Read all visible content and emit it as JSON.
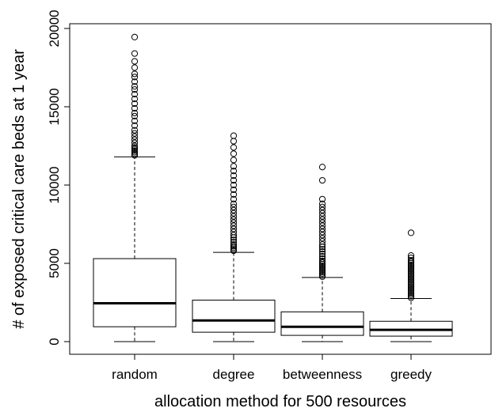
{
  "chart_data": {
    "type": "boxplot",
    "title": "",
    "xlabel": "allocation method for 500 resources",
    "ylabel": "# of exposed critical care beds at 1 year",
    "ylim": [
      -1000,
      20300
    ],
    "yticks": [
      0,
      5000,
      10000,
      15000,
      20000
    ],
    "grid": false,
    "categories": [
      "random",
      "degree",
      "betweenness",
      "greedy"
    ],
    "boxes": [
      {
        "name": "random",
        "min": 0,
        "q1": 950,
        "median": 2450,
        "q3": 5300,
        "whisker_high": 11800,
        "outliers": [
          11900,
          12000,
          12100,
          12200,
          12300,
          12400,
          12500,
          12700,
          12900,
          13100,
          13300,
          13500,
          13800,
          14100,
          14400,
          14600,
          14900,
          15200,
          15500,
          15800,
          16100,
          16300,
          16600,
          16900,
          17100,
          17500,
          17900,
          18400,
          19450
        ]
      },
      {
        "name": "degree",
        "min": 0,
        "q1": 600,
        "median": 1350,
        "q3": 2650,
        "whisker_high": 5700,
        "outliers": [
          5800,
          5900,
          6000,
          6100,
          6200,
          6350,
          6500,
          6650,
          6800,
          7000,
          7200,
          7400,
          7600,
          7800,
          8000,
          8200,
          8400,
          8600,
          8800,
          9100,
          9400,
          9700,
          10000,
          10300,
          10600,
          10900,
          11200,
          11600,
          12000,
          12400,
          12800,
          13150
        ]
      },
      {
        "name": "betweenness",
        "min": 0,
        "q1": 400,
        "median": 950,
        "q3": 1900,
        "whisker_high": 4100,
        "outliers": [
          4150,
          4250,
          4350,
          4450,
          4550,
          4650,
          4750,
          4850,
          4950,
          5050,
          5150,
          5300,
          5450,
          5600,
          5750,
          5900,
          6050,
          6200,
          6400,
          6600,
          6800,
          7000,
          7200,
          7400,
          7600,
          7800,
          8000,
          8200,
          8400,
          8600,
          8800,
          9100,
          10300,
          11150
        ]
      },
      {
        "name": "greedy",
        "min": 0,
        "q1": 350,
        "median": 750,
        "q3": 1300,
        "whisker_high": 2750,
        "outliers": [
          2800,
          2900,
          3000,
          3100,
          3200,
          3300,
          3400,
          3500,
          3600,
          3700,
          3800,
          3900,
          4000,
          4100,
          4200,
          4300,
          4400,
          4500,
          4600,
          4700,
          4800,
          4900,
          5000,
          5100,
          5200,
          5350,
          5500,
          6950
        ]
      }
    ]
  }
}
